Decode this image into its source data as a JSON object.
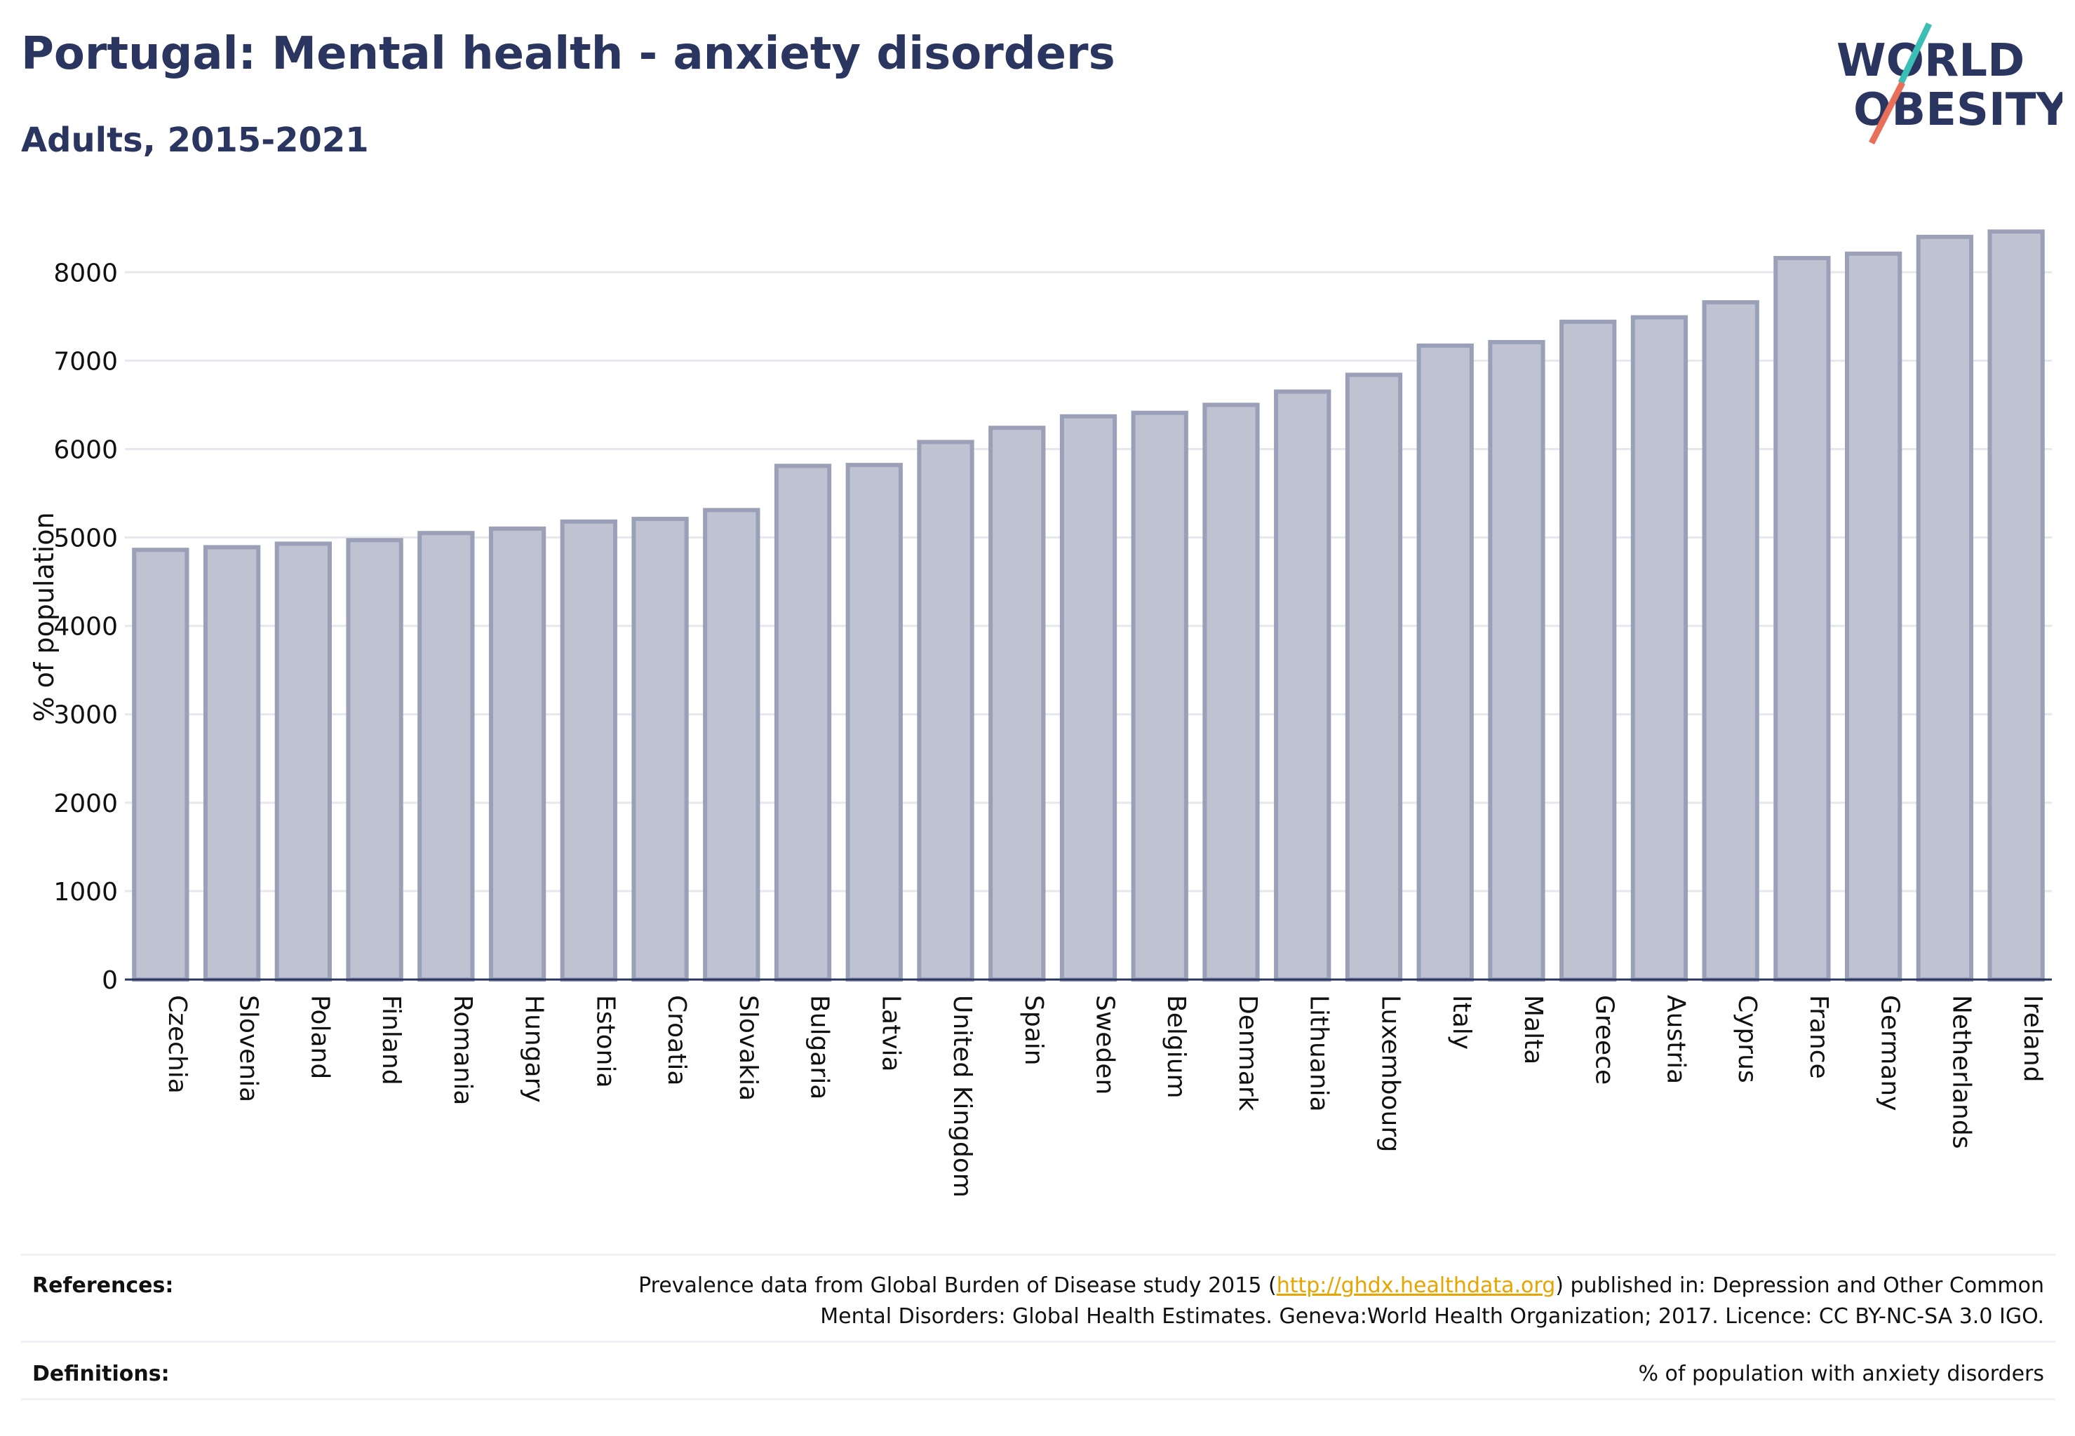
{
  "title": "Portugal: Mental health - anxiety disorders",
  "subtitle": "Adults, 2015-2021",
  "logo": {
    "line1": "WORLD",
    "line2": "OBESITY"
  },
  "colors": {
    "title": "#2a3560",
    "bar_fill": "#bfc3d1",
    "bar_stroke": "#9aa0b8",
    "grid": "#e6e8ee",
    "logo_text": "#2a3560",
    "logo_slash_top": "#3bbfb5",
    "logo_slash_bottom": "#e8705a",
    "link": "#e8a400"
  },
  "chart_data": {
    "type": "bar",
    "title": "Portugal: Mental health - anxiety disorders",
    "subtitle": "Adults, 2015-2021",
    "xlabel": "",
    "ylabel": "% of population",
    "ylim": [
      0,
      8700
    ],
    "yticks": [
      0,
      1000,
      2000,
      3000,
      4000,
      5000,
      6000,
      7000,
      8000
    ],
    "grid": true,
    "categories": [
      "Czechia",
      "Slovenia",
      "Poland",
      "Finland",
      "Romania",
      "Hungary",
      "Estonia",
      "Croatia",
      "Slovakia",
      "Bulgaria",
      "Latvia",
      "United Kingdom",
      "Spain",
      "Sweden",
      "Belgium",
      "Denmark",
      "Lithuania",
      "Luxembourg",
      "Italy",
      "Malta",
      "Greece",
      "Austria",
      "Cyprus",
      "France",
      "Germany",
      "Netherlands",
      "Ireland"
    ],
    "values": [
      4860,
      4890,
      4930,
      4970,
      5050,
      5100,
      5180,
      5210,
      5310,
      5810,
      5820,
      6080,
      6240,
      6370,
      6410,
      6500,
      6650,
      6840,
      7170,
      7210,
      7440,
      7490,
      7660,
      8160,
      8210,
      8400,
      8460
    ]
  },
  "footer": {
    "references_label": "References:",
    "references_line1_pre": "Prevalence data from Global Burden of Disease study 2015 (",
    "references_link": "http://ghdx.healthdata.org",
    "references_line1_post": ") published in: Depression and Other Common",
    "references_line2": "Mental Disorders: Global Health Estimates. Geneva:World Health Organization; 2017. Licence: CC BY-NC-SA 3.0 IGO.",
    "definitions_label": "Definitions:",
    "definitions_text": "% of population with anxiety disorders"
  }
}
